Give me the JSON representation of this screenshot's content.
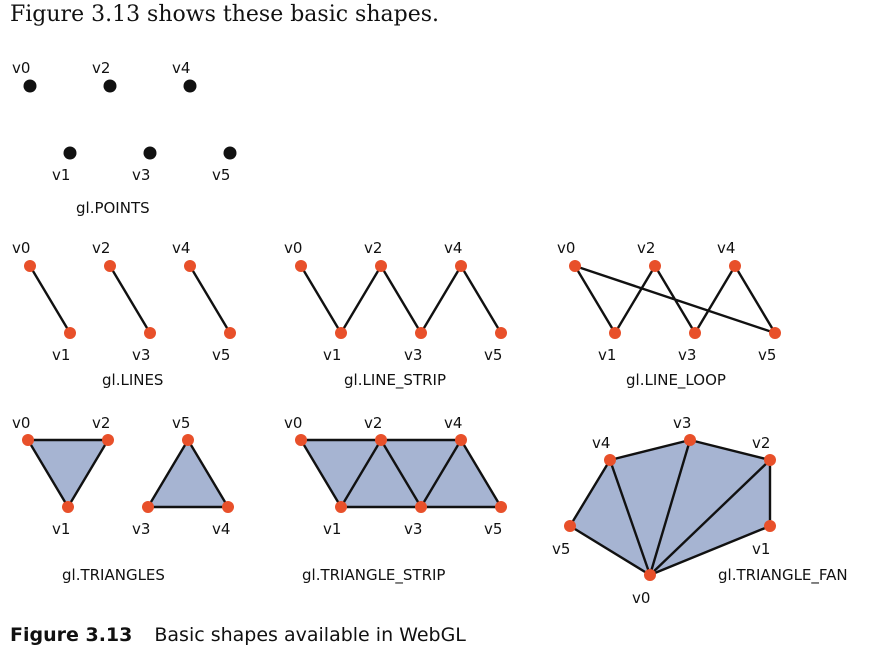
{
  "intro_text": "Figure 3.13 shows these basic shapes.",
  "colors": {
    "vertex_dark": "#111111",
    "vertex_orange": "#e8502a",
    "fill": "#a6b4d2",
    "line": "#111111"
  },
  "panels": {
    "points": {
      "label": "gl.POINTS",
      "vertices": [
        "v0",
        "v1",
        "v2",
        "v3",
        "v4",
        "v5"
      ]
    },
    "lines": {
      "label": "gl.LINES",
      "vertices": [
        "v0",
        "v1",
        "v2",
        "v3",
        "v4",
        "v5"
      ]
    },
    "strip": {
      "label": "gl.LINE_STRIP",
      "vertices": [
        "v0",
        "v1",
        "v2",
        "v3",
        "v4",
        "v5"
      ]
    },
    "loop": {
      "label": "gl.LINE_LOOP",
      "vertices": [
        "v0",
        "v1",
        "v2",
        "v3",
        "v4",
        "v5"
      ]
    },
    "triangles": {
      "label": "gl.TRIANGLES",
      "vertices": [
        "v0",
        "v1",
        "v2",
        "v3",
        "v4",
        "v5"
      ]
    },
    "tristrip": {
      "label": "gl.TRIANGLE_STRIP",
      "vertices": [
        "v0",
        "v1",
        "v2",
        "v3",
        "v4",
        "v5"
      ]
    },
    "fan": {
      "label": "gl.TRIANGLE_FAN",
      "vertices": [
        "v0",
        "v1",
        "v2",
        "v3",
        "v4",
        "v5"
      ]
    }
  },
  "caption": {
    "figure_number": "Figure 3.13",
    "text": "Basic shapes available in WebGL"
  }
}
